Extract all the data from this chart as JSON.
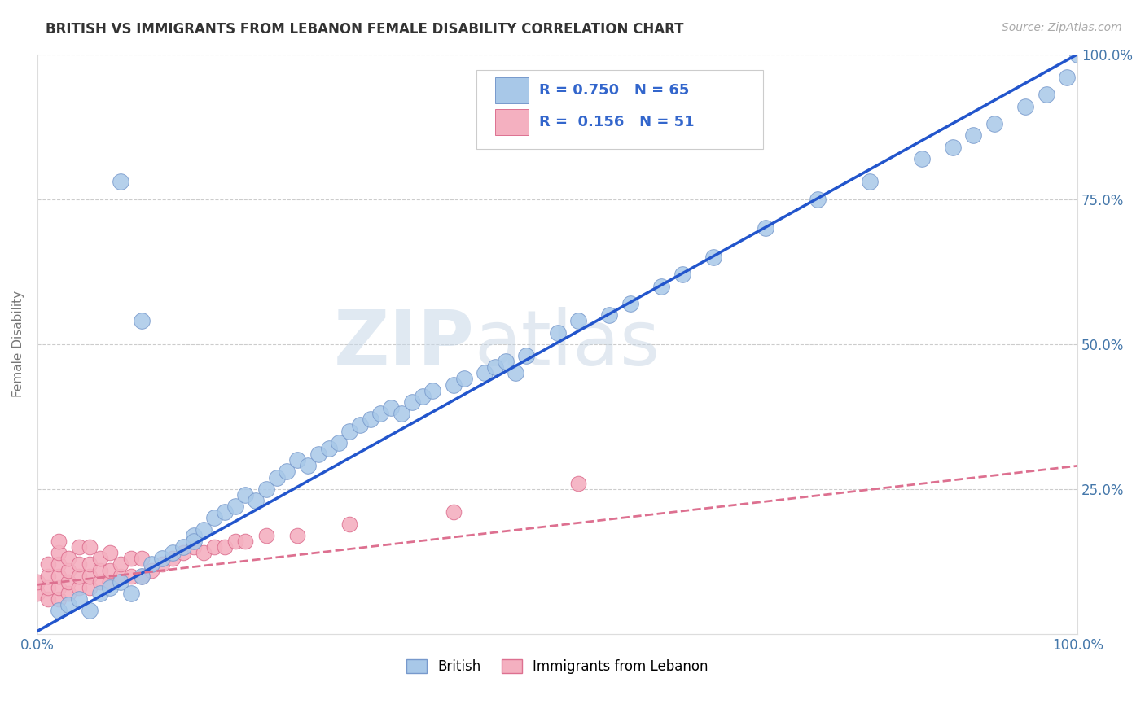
{
  "title": "BRITISH VS IMMIGRANTS FROM LEBANON FEMALE DISABILITY CORRELATION CHART",
  "source": "Source: ZipAtlas.com",
  "ylabel": "Female Disability",
  "xlim": [
    0,
    1.0
  ],
  "ylim": [
    0,
    1.0
  ],
  "british_color": "#a8c8e8",
  "british_edge": "#7799cc",
  "lebanon_color": "#f4b0c0",
  "lebanon_edge": "#dd7090",
  "trendline_british_color": "#2255cc",
  "trendline_lebanon_color": "#dd7090",
  "R_british": 0.75,
  "N_british": 65,
  "R_lebanon": 0.156,
  "N_lebanon": 51,
  "watermark": "ZIPatlas",
  "british_x": [
    0.02,
    0.03,
    0.04,
    0.05,
    0.06,
    0.07,
    0.08,
    0.09,
    0.1,
    0.11,
    0.12,
    0.13,
    0.14,
    0.15,
    0.15,
    0.16,
    0.17,
    0.18,
    0.19,
    0.2,
    0.21,
    0.22,
    0.23,
    0.24,
    0.25,
    0.26,
    0.27,
    0.28,
    0.29,
    0.3,
    0.31,
    0.32,
    0.33,
    0.34,
    0.35,
    0.36,
    0.37,
    0.38,
    0.4,
    0.41,
    0.43,
    0.44,
    0.45,
    0.46,
    0.47,
    0.5,
    0.52,
    0.55,
    0.57,
    0.6,
    0.62,
    0.65,
    0.7,
    0.75,
    0.8,
    0.85,
    0.88,
    0.9,
    0.92,
    0.95,
    0.97,
    0.99,
    1.0,
    0.08,
    0.1
  ],
  "british_y": [
    0.04,
    0.05,
    0.06,
    0.04,
    0.07,
    0.08,
    0.09,
    0.07,
    0.1,
    0.12,
    0.13,
    0.14,
    0.15,
    0.17,
    0.16,
    0.18,
    0.2,
    0.21,
    0.22,
    0.24,
    0.23,
    0.25,
    0.27,
    0.28,
    0.3,
    0.29,
    0.31,
    0.32,
    0.33,
    0.35,
    0.36,
    0.37,
    0.38,
    0.39,
    0.38,
    0.4,
    0.41,
    0.42,
    0.43,
    0.44,
    0.45,
    0.46,
    0.47,
    0.45,
    0.48,
    0.52,
    0.54,
    0.55,
    0.57,
    0.6,
    0.62,
    0.65,
    0.7,
    0.75,
    0.78,
    0.82,
    0.84,
    0.86,
    0.88,
    0.91,
    0.93,
    0.96,
    1.0,
    0.78,
    0.54
  ],
  "lebanon_x": [
    0.0,
    0.0,
    0.01,
    0.01,
    0.01,
    0.01,
    0.02,
    0.02,
    0.02,
    0.02,
    0.02,
    0.02,
    0.03,
    0.03,
    0.03,
    0.03,
    0.04,
    0.04,
    0.04,
    0.04,
    0.05,
    0.05,
    0.05,
    0.05,
    0.06,
    0.06,
    0.06,
    0.07,
    0.07,
    0.07,
    0.08,
    0.08,
    0.09,
    0.09,
    0.1,
    0.1,
    0.11,
    0.12,
    0.13,
    0.14,
    0.15,
    0.16,
    0.17,
    0.18,
    0.19,
    0.2,
    0.22,
    0.25,
    0.3,
    0.4,
    0.52
  ],
  "lebanon_y": [
    0.07,
    0.09,
    0.06,
    0.08,
    0.1,
    0.12,
    0.06,
    0.08,
    0.1,
    0.12,
    0.14,
    0.16,
    0.07,
    0.09,
    0.11,
    0.13,
    0.08,
    0.1,
    0.12,
    0.15,
    0.08,
    0.1,
    0.12,
    0.15,
    0.09,
    0.11,
    0.13,
    0.09,
    0.11,
    0.14,
    0.1,
    0.12,
    0.1,
    0.13,
    0.1,
    0.13,
    0.11,
    0.12,
    0.13,
    0.14,
    0.15,
    0.14,
    0.15,
    0.15,
    0.16,
    0.16,
    0.17,
    0.17,
    0.19,
    0.21,
    0.26
  ],
  "trendline_b_x0": 0.0,
  "trendline_b_y0": 0.005,
  "trendline_b_x1": 1.0,
  "trendline_b_y1": 1.0,
  "trendline_l_x0": 0.0,
  "trendline_l_y0": 0.085,
  "trendline_l_x1": 1.0,
  "trendline_l_y1": 0.29
}
